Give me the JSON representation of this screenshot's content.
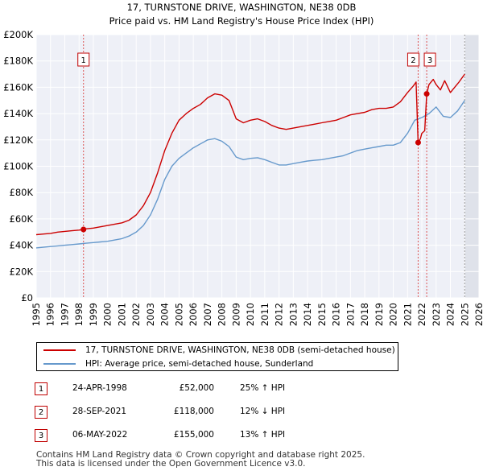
{
  "chart_data": {
    "type": "line",
    "title": "17, TURNSTONE DRIVE, WASHINGTON, NE38 0DB",
    "subtitle": "Price paid vs. HM Land Registry's House Price Index (HPI)",
    "xlabel": "",
    "ylabel": "",
    "xlim": [
      1995,
      2026
    ],
    "ylim": [
      0,
      200000
    ],
    "y_ticks": [
      {
        "value": 0,
        "label": "£0"
      },
      {
        "value": 20000,
        "label": "£20K"
      },
      {
        "value": 40000,
        "label": "£40K"
      },
      {
        "value": 60000,
        "label": "£60K"
      },
      {
        "value": 80000,
        "label": "£80K"
      },
      {
        "value": 100000,
        "label": "£100K"
      },
      {
        "value": 120000,
        "label": "£120K"
      },
      {
        "value": 140000,
        "label": "£140K"
      },
      {
        "value": 160000,
        "label": "£160K"
      },
      {
        "value": 180000,
        "label": "£180K"
      },
      {
        "value": 200000,
        "label": "£200K"
      }
    ],
    "x_ticks": [
      1995,
      1996,
      1997,
      1998,
      1999,
      2000,
      2001,
      2002,
      2003,
      2004,
      2005,
      2006,
      2007,
      2008,
      2009,
      2010,
      2011,
      2012,
      2013,
      2014,
      2015,
      2016,
      2017,
      2018,
      2019,
      2020,
      2021,
      2022,
      2023,
      2024,
      2025,
      2026
    ],
    "grid": true,
    "future_shading_from": 2025.0,
    "series": [
      {
        "name": "17, TURNSTONE DRIVE, WASHINGTON, NE38 0DB (semi-detached house)",
        "color": "#cc0000",
        "x": [
          1995.0,
          1995.5,
          1996.0,
          1996.5,
          1997.0,
          1997.5,
          1998.0,
          1998.31,
          1998.5,
          1999.0,
          1999.5,
          2000.0,
          2000.5,
          2001.0,
          2001.5,
          2002.0,
          2002.5,
          2003.0,
          2003.5,
          2004.0,
          2004.5,
          2005.0,
          2005.5,
          2006.0,
          2006.5,
          2007.0,
          2007.5,
          2008.0,
          2008.5,
          2009.0,
          2009.5,
          2010.0,
          2010.5,
          2011.0,
          2011.5,
          2012.0,
          2012.5,
          2013.0,
          2013.5,
          2014.0,
          2014.5,
          2015.0,
          2015.5,
          2016.0,
          2016.5,
          2017.0,
          2017.5,
          2018.0,
          2018.5,
          2019.0,
          2019.5,
          2020.0,
          2020.5,
          2021.0,
          2021.4,
          2021.6,
          2021.74,
          2021.9,
          2022.0,
          2022.2,
          2022.34,
          2022.5,
          2022.8,
          2023.0,
          2023.3,
          2023.6,
          2024.0,
          2024.3,
          2024.6,
          2025.0
        ],
        "values": [
          48000,
          48500,
          49000,
          50000,
          50500,
          51000,
          51500,
          52000,
          52500,
          53000,
          54000,
          55000,
          56000,
          57000,
          59000,
          63000,
          70000,
          80000,
          95000,
          112000,
          125000,
          135000,
          140000,
          144000,
          147000,
          152000,
          155000,
          154000,
          150000,
          136000,
          133000,
          135000,
          136000,
          134000,
          131000,
          129000,
          128000,
          129000,
          130000,
          131000,
          132000,
          133000,
          134000,
          135000,
          137000,
          139000,
          140000,
          141000,
          143000,
          144000,
          144000,
          145000,
          149000,
          156000,
          161000,
          164000,
          118000,
          121000,
          125000,
          127000,
          155000,
          162000,
          166000,
          162000,
          158000,
          165000,
          156000,
          160000,
          164000,
          170000
        ]
      },
      {
        "name": "HPI: Average price, semi-detached house, Sunderland",
        "color": "#6699cc",
        "x": [
          1995.0,
          1995.5,
          1996.0,
          1996.5,
          1997.0,
          1997.5,
          1998.0,
          1998.5,
          1999.0,
          1999.5,
          2000.0,
          2000.5,
          2001.0,
          2001.5,
          2002.0,
          2002.5,
          2003.0,
          2003.5,
          2004.0,
          2004.5,
          2005.0,
          2005.5,
          2006.0,
          2006.5,
          2007.0,
          2007.5,
          2008.0,
          2008.5,
          2009.0,
          2009.5,
          2010.0,
          2010.5,
          2011.0,
          2011.5,
          2012.0,
          2012.5,
          2013.0,
          2013.5,
          2014.0,
          2014.5,
          2015.0,
          2015.5,
          2016.0,
          2016.5,
          2017.0,
          2017.5,
          2018.0,
          2018.5,
          2019.0,
          2019.5,
          2020.0,
          2020.5,
          2021.0,
          2021.5,
          2022.0,
          2022.5,
          2023.0,
          2023.5,
          2024.0,
          2024.5,
          2025.0
        ],
        "values": [
          38000,
          38500,
          39000,
          39500,
          40000,
          40500,
          41000,
          41500,
          42000,
          42500,
          43000,
          44000,
          45000,
          47000,
          50000,
          55000,
          63000,
          75000,
          90000,
          100000,
          106000,
          110000,
          114000,
          117000,
          120000,
          121000,
          119000,
          115000,
          107000,
          105000,
          106000,
          106500,
          105000,
          103000,
          101000,
          101000,
          102000,
          103000,
          104000,
          104500,
          105000,
          106000,
          107000,
          108000,
          110000,
          112000,
          113000,
          114000,
          115000,
          116000,
          116000,
          118000,
          125000,
          135000,
          137000,
          140000,
          145000,
          138000,
          137000,
          142000,
          150000
        ]
      }
    ],
    "markers": [
      {
        "id": "1",
        "date": 1998.31,
        "price": 52000
      },
      {
        "id": "2",
        "date": 2021.74,
        "price": 118000
      },
      {
        "id": "3",
        "date": 2022.34,
        "price": 155000
      }
    ]
  },
  "legend": {
    "property_label": "17, TURNSTONE DRIVE, WASHINGTON, NE38 0DB (semi-detached house)",
    "hpi_label": "HPI: Average price, semi-detached house, Sunderland"
  },
  "transactions": [
    {
      "num": "1",
      "date": "24-APR-1998",
      "price": "£52,000",
      "hpi": "25% ↑ HPI"
    },
    {
      "num": "2",
      "date": "28-SEP-2021",
      "price": "£118,000",
      "hpi": "12% ↓ HPI"
    },
    {
      "num": "3",
      "date": "06-MAY-2022",
      "price": "£155,000",
      "hpi": "13% ↑ HPI"
    }
  ],
  "footer": {
    "line1": "Contains HM Land Registry data © Crown copyright and database right 2025.",
    "line2": "This data is licensed under the Open Government Licence v3.0."
  }
}
